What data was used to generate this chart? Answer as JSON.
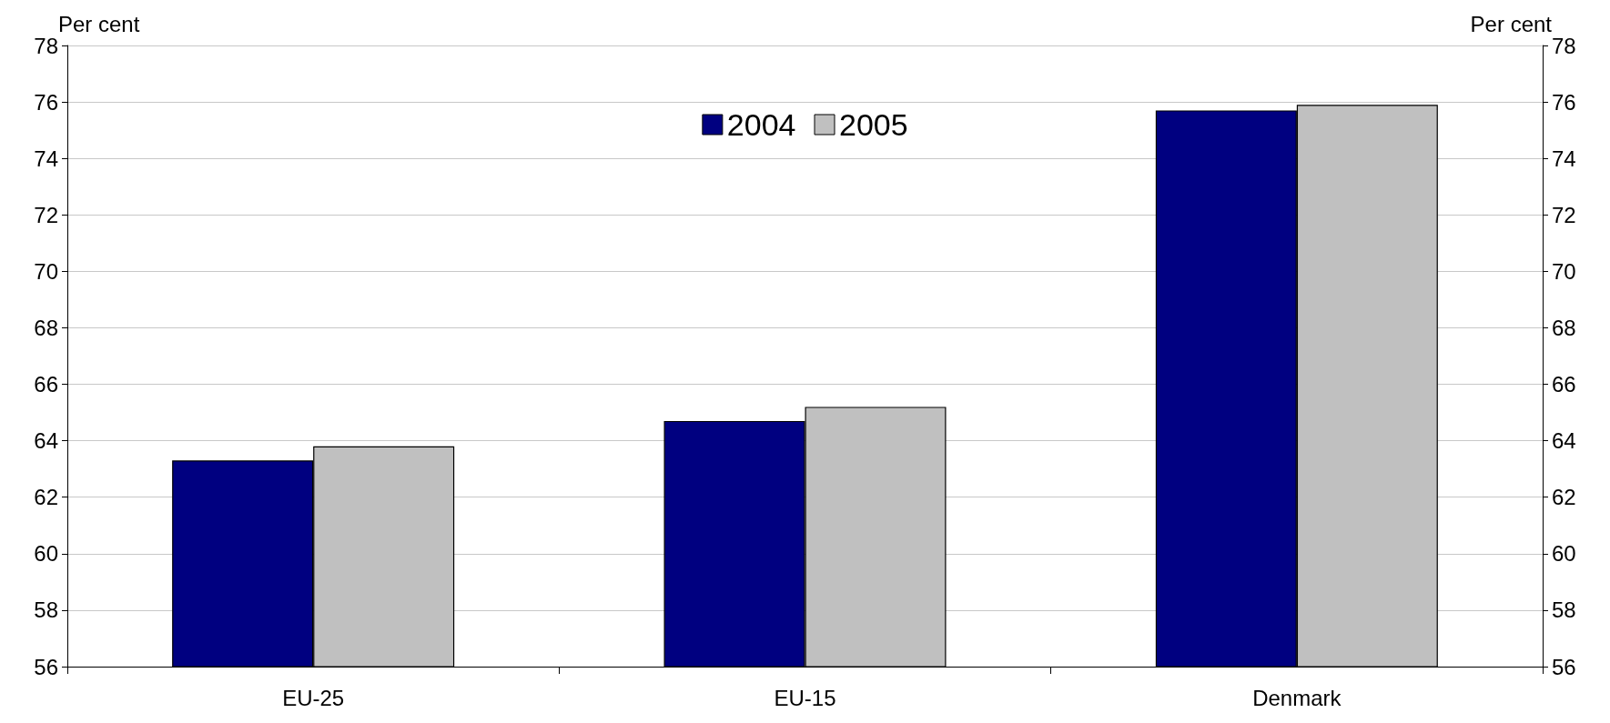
{
  "chart_data": {
    "type": "bar",
    "ylabel": "Per cent",
    "y2label": "Per cent",
    "categories": [
      "EU-25",
      "EU-15",
      "Denmark"
    ],
    "series": [
      {
        "name": "2004",
        "color": "#000080",
        "values": [
          63.3,
          64.7,
          75.7
        ]
      },
      {
        "name": "2005",
        "color": "#c0c0c0",
        "values": [
          63.8,
          65.2,
          75.9
        ]
      }
    ],
    "ylim": [
      56,
      78
    ],
    "yticks": [
      56,
      58,
      60,
      62,
      64,
      66,
      68,
      70,
      72,
      74,
      76,
      78
    ],
    "y2lim": [
      56,
      78
    ],
    "y2ticks": [
      56,
      58,
      60,
      62,
      64,
      66,
      68,
      70,
      72,
      74,
      76,
      78
    ],
    "grid": "y",
    "legend": "top"
  }
}
